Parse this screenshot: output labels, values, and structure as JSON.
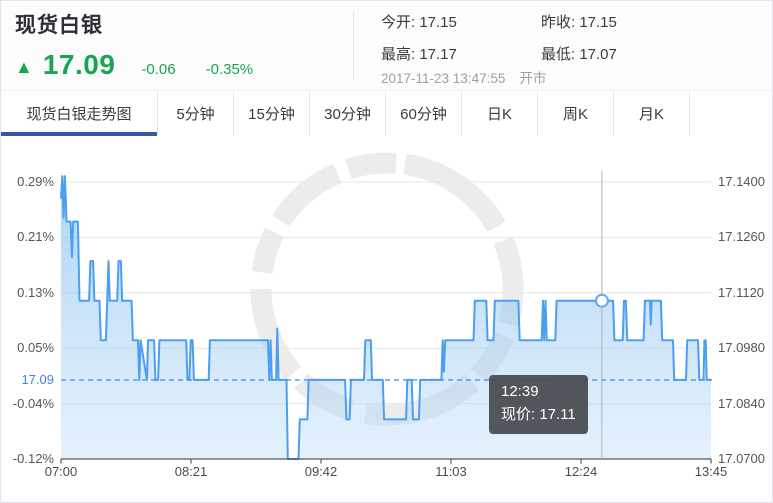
{
  "header": {
    "title": "现货白银",
    "trend_icon": "up-triangle-icon",
    "price": "17.09",
    "change": "-0.06",
    "change_pct": "-0.35%",
    "stats": [
      {
        "label": "今开",
        "value": "17.15"
      },
      {
        "label": "昨收",
        "value": "17.15"
      },
      {
        "label": "最高",
        "value": "17.17"
      },
      {
        "label": "最低",
        "value": "17.07"
      }
    ],
    "timestamp": "2017-11-23 13:47:55",
    "market_status": "开市"
  },
  "tabs": [
    {
      "label": "现货白银走势图",
      "active": true
    },
    {
      "label": "5分钟",
      "active": false
    },
    {
      "label": "15分钟",
      "active": false
    },
    {
      "label": "30分钟",
      "active": false
    },
    {
      "label": "60分钟",
      "active": false
    },
    {
      "label": "日K",
      "active": false
    },
    {
      "label": "周K",
      "active": false
    },
    {
      "label": "月K",
      "active": false
    }
  ],
  "colors": {
    "up_green": "#18a452",
    "tab_underline_blue": "#3a55a4",
    "line_blue": "#4c9ff0",
    "dashed_blue": "#4f94e6",
    "axis_text": "#55565b",
    "grid_gray": "#e6e6e9",
    "tooltip_bg": "#46494e"
  },
  "chart_data": {
    "type": "line",
    "title": "现货白银走势图",
    "x_tick_labels": [
      "07:00",
      "08:21",
      "09:42",
      "11:03",
      "12:24",
      "13:45"
    ],
    "y_left_pct_labels": [
      "0.29%",
      "0.21%",
      "0.13%",
      "0.05%",
      "-0.04%",
      "-0.12%"
    ],
    "y_right_price_labels": [
      "17.1400",
      "17.1260",
      "17.1120",
      "17.0980",
      "17.0840",
      "17.0700"
    ],
    "ylim": [
      17.07,
      17.14
    ],
    "x_minutes_span": 405,
    "grid": true,
    "legend": false,
    "current_price_line": {
      "value": 17.09,
      "label": "17.09"
    },
    "crosshair": {
      "x_minutes": 337,
      "time": "12:39",
      "price_label": "现价",
      "price_value": "17.11",
      "price_text": "现价: 17.11",
      "price": 17.11
    },
    "watermark_icon": "grunge-circle-stamp",
    "series": [
      {
        "name": "现货白银",
        "points": [
          [
            0,
            17.136
          ],
          [
            0.8,
            17.1415
          ],
          [
            1.6,
            17.131
          ],
          [
            2.4,
            17.1415
          ],
          [
            3.5,
            17.13
          ],
          [
            6,
            17.13
          ],
          [
            6.8,
            17.121
          ],
          [
            7.6,
            17.13
          ],
          [
            10.5,
            17.13
          ],
          [
            11.5,
            17.11
          ],
          [
            17.5,
            17.11
          ],
          [
            18.3,
            17.12
          ],
          [
            20,
            17.12
          ],
          [
            20.8,
            17.11
          ],
          [
            24,
            17.11
          ],
          [
            24.8,
            17.1
          ],
          [
            28,
            17.1
          ],
          [
            28.8,
            17.11
          ],
          [
            29.6,
            17.12
          ],
          [
            30.4,
            17.11
          ],
          [
            35,
            17.11
          ],
          [
            35.8,
            17.12
          ],
          [
            37.3,
            17.12
          ],
          [
            38.1,
            17.11
          ],
          [
            44,
            17.11
          ],
          [
            44.8,
            17.1
          ],
          [
            48,
            17.1
          ],
          [
            48.8,
            17.09
          ],
          [
            49.6,
            17.1
          ],
          [
            53.5,
            17.09
          ],
          [
            54.3,
            17.1
          ],
          [
            58,
            17.1
          ],
          [
            58.8,
            17.09
          ],
          [
            60.5,
            17.09
          ],
          [
            61.3,
            17.1
          ],
          [
            78,
            17.1
          ],
          [
            78.8,
            17.09
          ],
          [
            80,
            17.09
          ],
          [
            80.8,
            17.1
          ],
          [
            82,
            17.1
          ],
          [
            82.8,
            17.09
          ],
          [
            92,
            17.09
          ],
          [
            92.8,
            17.1
          ],
          [
            129,
            17.1
          ],
          [
            129.8,
            17.09
          ],
          [
            130.6,
            17.1
          ],
          [
            131.4,
            17.09
          ],
          [
            134,
            17.09
          ],
          [
            134.8,
            17.103
          ],
          [
            135.6,
            17.09
          ],
          [
            140.5,
            17.09
          ],
          [
            141.3,
            17.07
          ],
          [
            148,
            17.07
          ],
          [
            148.8,
            17.08
          ],
          [
            153.5,
            17.08
          ],
          [
            154.3,
            17.09
          ],
          [
            177,
            17.09
          ],
          [
            177.8,
            17.08
          ],
          [
            179.8,
            17.08
          ],
          [
            180.6,
            17.09
          ],
          [
            188.8,
            17.09
          ],
          [
            189.6,
            17.1
          ],
          [
            193,
            17.1
          ],
          [
            193.8,
            17.09
          ],
          [
            200.5,
            17.09
          ],
          [
            201.3,
            17.08
          ],
          [
            215,
            17.08
          ],
          [
            215.8,
            17.09
          ],
          [
            218.5,
            17.09
          ],
          [
            219.3,
            17.08
          ],
          [
            223,
            17.08
          ],
          [
            223.8,
            17.09
          ],
          [
            237,
            17.09
          ],
          [
            237.8,
            17.1
          ],
          [
            238.6,
            17.092
          ],
          [
            239.4,
            17.1
          ],
          [
            257,
            17.1
          ],
          [
            257.8,
            17.11
          ],
          [
            265,
            17.11
          ],
          [
            265.8,
            17.1
          ],
          [
            269.5,
            17.1
          ],
          [
            270.3,
            17.11
          ],
          [
            285,
            17.11
          ],
          [
            285.8,
            17.1
          ],
          [
            299.5,
            17.1
          ],
          [
            300.3,
            17.11
          ],
          [
            301.1,
            17.1
          ],
          [
            301.9,
            17.11
          ],
          [
            302.7,
            17.1
          ],
          [
            308,
            17.1
          ],
          [
            308.8,
            17.11
          ],
          [
            344,
            17.11
          ],
          [
            344.8,
            17.1
          ],
          [
            350,
            17.1
          ],
          [
            350.8,
            17.11
          ],
          [
            352,
            17.11
          ],
          [
            352.8,
            17.1
          ],
          [
            363,
            17.1
          ],
          [
            363.8,
            17.11
          ],
          [
            367,
            17.11
          ],
          [
            367.5,
            17.104
          ],
          [
            368,
            17.11
          ],
          [
            373.8,
            17.11
          ],
          [
            374.6,
            17.1
          ],
          [
            381.3,
            17.1
          ],
          [
            382.1,
            17.09
          ],
          [
            389.4,
            17.09
          ],
          [
            390.2,
            17.1
          ],
          [
            396.9,
            17.1
          ],
          [
            397.7,
            17.09
          ],
          [
            400.3,
            17.09
          ],
          [
            400.9,
            17.1
          ],
          [
            401.7,
            17.1
          ],
          [
            402.3,
            17.09
          ],
          [
            405,
            17.09
          ]
        ]
      }
    ]
  }
}
